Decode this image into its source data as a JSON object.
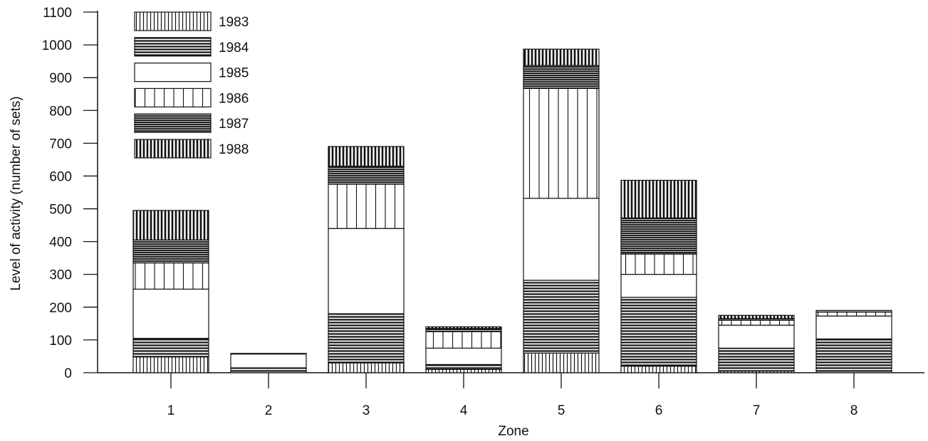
{
  "chart_data": {
    "type": "bar",
    "stacked": true,
    "xlabel": "Zone",
    "ylabel": "Level of activity (number of sets)",
    "ylim": [
      0,
      1100
    ],
    "yticks": [
      "0",
      "100",
      "200",
      "300",
      "400",
      "500",
      "600",
      "700",
      "800",
      "900",
      "1000",
      "1100"
    ],
    "categories": [
      "1",
      "2",
      "3",
      "4",
      "5",
      "6",
      "7",
      "8"
    ],
    "legend_position": "top-left",
    "grid": false,
    "series": [
      {
        "name": "1983",
        "pattern": "vlines-dense-thin",
        "values": [
          48,
          0,
          30,
          10,
          60,
          20,
          5,
          0
        ]
      },
      {
        "name": "1984",
        "pattern": "hlines-dense",
        "values": [
          57,
          15,
          150,
          15,
          222,
          210,
          70,
          103
        ]
      },
      {
        "name": "1985",
        "pattern": "blank",
        "values": [
          150,
          42,
          260,
          50,
          250,
          70,
          70,
          70
        ]
      },
      {
        "name": "1986",
        "pattern": "vlines-wide",
        "values": [
          80,
          0,
          135,
          50,
          335,
          62,
          15,
          12
        ]
      },
      {
        "name": "1987",
        "pattern": "hlines-dark",
        "values": [
          70,
          2,
          55,
          10,
          70,
          110,
          5,
          5
        ]
      },
      {
        "name": "1988",
        "pattern": "vlines-dense-thick",
        "values": [
          90,
          0,
          60,
          5,
          50,
          115,
          10,
          0
        ]
      }
    ]
  }
}
